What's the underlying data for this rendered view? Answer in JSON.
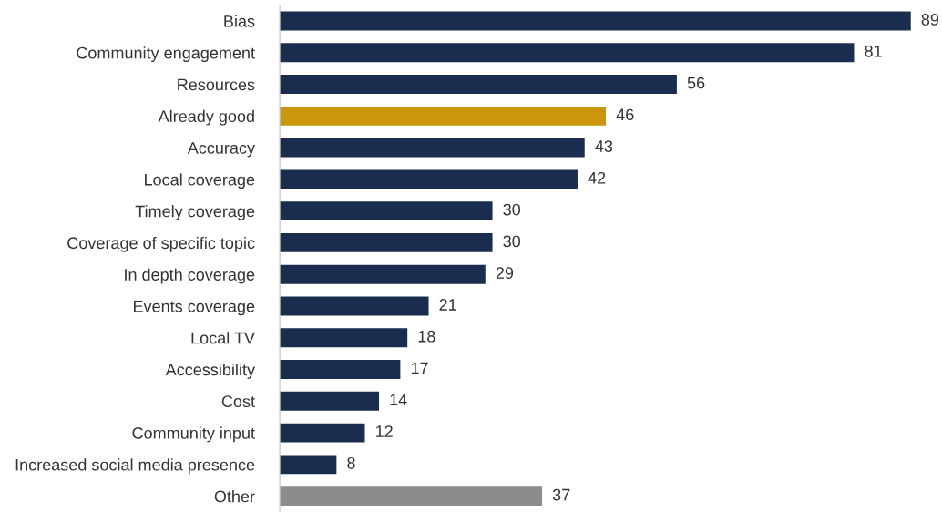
{
  "chart_data": {
    "type": "bar",
    "orientation": "horizontal",
    "categories": [
      "Bias",
      "Community engagement",
      "Resources",
      "Already good",
      "Accuracy",
      "Local coverage",
      "Timely coverage",
      "Coverage of specific topic",
      "In depth coverage",
      "Events coverage",
      "Local TV",
      "Accessibility",
      "Cost",
      "Community input",
      "Increased social media presence",
      "Other"
    ],
    "values": [
      89,
      81,
      56,
      46,
      43,
      42,
      30,
      30,
      29,
      21,
      18,
      17,
      14,
      12,
      8,
      37
    ],
    "colors": [
      "#1b2d4f",
      "#1b2d4f",
      "#1b2d4f",
      "#c9960c",
      "#1b2d4f",
      "#1b2d4f",
      "#1b2d4f",
      "#1b2d4f",
      "#1b2d4f",
      "#1b2d4f",
      "#1b2d4f",
      "#1b2d4f",
      "#1b2d4f",
      "#1b2d4f",
      "#1b2d4f",
      "#8c8c8c"
    ],
    "data_labels": true,
    "tick_labels": "y",
    "grid": false,
    "legend": false
  }
}
